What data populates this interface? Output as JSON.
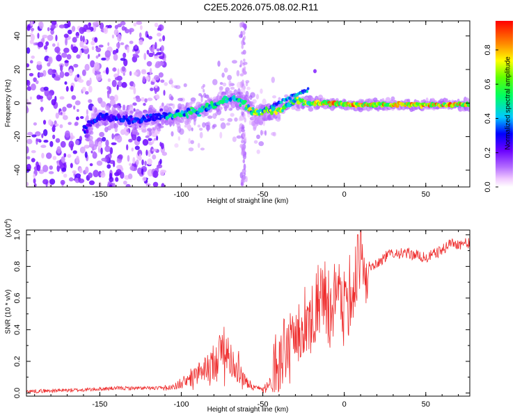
{
  "title": "C2E5.2026.075.08.02.R11",
  "chart_data": [
    {
      "type": "heatmap",
      "name": "spectrogram",
      "xlabel": "Height of straight line (km)",
      "ylabel": "Frequency (Hz)",
      "xlim": [
        -195,
        77
      ],
      "ylim": [
        -50,
        49
      ],
      "xticks": [
        -150,
        -100,
        -50,
        0,
        50
      ],
      "yticks": [
        -40,
        -20,
        0,
        20,
        40
      ],
      "colorbar": {
        "label": "Normalized spectral amplitude",
        "ticks": [
          0.0,
          0.2,
          0.4,
          0.6,
          0.8
        ],
        "range": [
          0,
          0.97
        ]
      },
      "trend": {
        "x": [
          -158,
          -150,
          -130,
          -110,
          -90,
          -70,
          -62,
          -55,
          -40,
          -30,
          -20,
          -10,
          0,
          20,
          40,
          60,
          77
        ],
        "y": [
          -15,
          -8,
          -10,
          -8,
          -5,
          3,
          0,
          -6,
          -4,
          2,
          0,
          0,
          -1,
          -1,
          -1,
          -1,
          -1
        ]
      },
      "noise_region": [
        -195,
        -110
      ]
    },
    {
      "type": "line",
      "name": "snr",
      "xlabel": "Height of straight line (km)",
      "ylabel": "SNR (10 * v/v)",
      "multiplier": "(x10",
      "multiplier_exp": "4",
      "multiplier_close": ")",
      "xlim": [
        -195,
        77
      ],
      "ylim": [
        -0.02,
        1.03
      ],
      "xticks": [
        -150,
        -100,
        -50,
        0,
        50
      ],
      "yticks": [
        0.0,
        0.2,
        0.4,
        0.6,
        0.8,
        1.0
      ],
      "series": [
        {
          "name": "SNR",
          "color": "#ee2b2b",
          "x": [
            -195,
            -160,
            -140,
            -110,
            -100,
            -90,
            -80,
            -75,
            -72,
            -65,
            -60,
            -55,
            -50,
            -45,
            -40,
            -35,
            -30,
            -25,
            -20,
            -15,
            -10,
            -5,
            0,
            5,
            8,
            10,
            12,
            15,
            20,
            25,
            30,
            35,
            40,
            45,
            50,
            55,
            60,
            65,
            70,
            77
          ],
          "y": [
            0.01,
            0.02,
            0.03,
            0.03,
            0.05,
            0.12,
            0.18,
            0.28,
            0.25,
            0.15,
            0.06,
            0.04,
            0.02,
            0.08,
            0.18,
            0.3,
            0.38,
            0.45,
            0.5,
            0.58,
            0.55,
            0.62,
            0.55,
            0.66,
            0.7,
            0.75,
            0.72,
            0.8,
            0.82,
            0.86,
            0.89,
            0.88,
            0.88,
            0.87,
            0.85,
            0.88,
            0.9,
            0.95,
            0.94,
            0.95
          ]
        }
      ]
    }
  ]
}
